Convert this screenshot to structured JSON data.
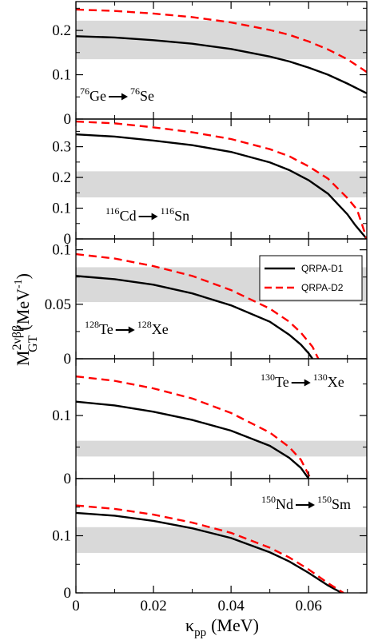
{
  "chart_data": {
    "type": "line",
    "xlabel": {
      "symbol": "κ",
      "sub": "pp",
      "unit": "(MeV)"
    },
    "ylabel": {
      "base": "M",
      "sup": "2νββ",
      "sub": "GT",
      "unit_open": "(MeV",
      "unit_exp": "-1",
      "unit_close": ")"
    },
    "xlim": [
      0,
      0.075
    ],
    "xticks": [
      {
        "value": 0,
        "label": "0"
      },
      {
        "value": 0.02,
        "label": "0.02"
      },
      {
        "value": 0.04,
        "label": "0.04"
      },
      {
        "value": 0.06,
        "label": "0.06"
      }
    ],
    "legend": {
      "placement": "right, third panel",
      "entries": [
        {
          "label": "QRPA-D1",
          "color": "#000000",
          "dash": "solid"
        },
        {
          "label": "QRPA-D2",
          "color": "#ff0000",
          "dash": "dashed"
        }
      ]
    },
    "panels": [
      {
        "reaction": {
          "parent_mass": "76",
          "parent": "Ge",
          "daughter_mass": "76",
          "daughter": "Se"
        },
        "ylim": [
          0,
          0.265
        ],
        "yticks": [
          {
            "value": 0,
            "label": "0"
          },
          {
            "value": 0.1,
            "label": "0.1"
          },
          {
            "value": 0.2,
            "label": "0.2"
          }
        ],
        "band": [
          0.135,
          0.222
        ],
        "series": [
          {
            "name": "QRPA-D1",
            "x": [
              0,
              0.01,
              0.02,
              0.03,
              0.04,
              0.05,
              0.055,
              0.06,
              0.065,
              0.07,
              0.075
            ],
            "y": [
              0.187,
              0.184,
              0.178,
              0.17,
              0.158,
              0.141,
              0.13,
              0.116,
              0.1,
              0.08,
              0.058
            ]
          },
          {
            "name": "QRPA-D2",
            "x": [
              0,
              0.01,
              0.02,
              0.03,
              0.04,
              0.05,
              0.055,
              0.06,
              0.065,
              0.07,
              0.075
            ],
            "y": [
              0.247,
              0.244,
              0.238,
              0.23,
              0.218,
              0.201,
              0.19,
              0.175,
              0.157,
              0.135,
              0.106
            ]
          }
        ]
      },
      {
        "reaction": {
          "parent_mass": "116",
          "parent": "Cd",
          "daughter_mass": "116",
          "daughter": "Sn"
        },
        "ylim": [
          0,
          0.39
        ],
        "yticks": [
          {
            "value": 0,
            "label": "0"
          },
          {
            "value": 0.1,
            "label": "0.1"
          },
          {
            "value": 0.2,
            "label": "0.2"
          },
          {
            "value": 0.3,
            "label": "0.3"
          }
        ],
        "band": [
          0.135,
          0.22
        ],
        "series": [
          {
            "name": "QRPA-D1",
            "x": [
              0,
              0.01,
              0.02,
              0.03,
              0.04,
              0.05,
              0.055,
              0.06,
              0.065,
              0.07,
              0.072,
              0.075
            ],
            "y": [
              0.34,
              0.333,
              0.32,
              0.305,
              0.283,
              0.249,
              0.224,
              0.191,
              0.147,
              0.08,
              0.045,
              0.0
            ]
          },
          {
            "name": "QRPA-D2",
            "x": [
              0,
              0.01,
              0.02,
              0.03,
              0.04,
              0.05,
              0.055,
              0.06,
              0.065,
              0.07,
              0.0725,
              0.075
            ],
            "y": [
              0.382,
              0.376,
              0.363,
              0.347,
              0.325,
              0.292,
              0.269,
              0.236,
              0.196,
              0.133,
              0.095,
              0.0
            ]
          }
        ]
      },
      {
        "reaction": {
          "parent_mass": "128",
          "parent": "Te",
          "daughter_mass": "128",
          "daughter": "Xe"
        },
        "ylim": [
          0,
          0.11
        ],
        "yticks": [
          {
            "value": 0,
            "label": "0"
          },
          {
            "value": 0.05,
            "label": "0.05"
          },
          {
            "value": 0.1,
            "label": "0.1"
          }
        ],
        "band": [
          0.052,
          0.084
        ],
        "series": [
          {
            "name": "QRPA-D1",
            "x": [
              0,
              0.01,
              0.02,
              0.03,
              0.04,
              0.05,
              0.055,
              0.058,
              0.06,
              0.061
            ],
            "y": [
              0.076,
              0.073,
              0.068,
              0.06,
              0.049,
              0.034,
              0.022,
              0.013,
              0.005,
              0.0
            ]
          },
          {
            "name": "QRPA-D2",
            "x": [
              0,
              0.01,
              0.02,
              0.03,
              0.04,
              0.05,
              0.055,
              0.058,
              0.061,
              0.0625
            ],
            "y": [
              0.096,
              0.092,
              0.085,
              0.076,
              0.063,
              0.046,
              0.034,
              0.024,
              0.011,
              0.0
            ]
          }
        ]
      },
      {
        "reaction": {
          "parent_mass": "130",
          "parent": "Te",
          "daughter_mass": "130",
          "daughter": "Xe"
        },
        "ylim": [
          0,
          0.19
        ],
        "yticks": [
          {
            "value": 0,
            "label": "0"
          },
          {
            "value": 0.1,
            "label": "0.1"
          }
        ],
        "band": [
          0.035,
          0.06
        ],
        "series": [
          {
            "name": "QRPA-D1",
            "x": [
              0,
              0.01,
              0.02,
              0.03,
              0.04,
              0.05,
              0.055,
              0.058,
              0.06
            ],
            "y": [
              0.122,
              0.116,
              0.106,
              0.093,
              0.076,
              0.052,
              0.033,
              0.017,
              0.0
            ]
          },
          {
            "name": "QRPA-D2",
            "x": [
              0,
              0.01,
              0.02,
              0.03,
              0.04,
              0.05,
              0.055,
              0.058,
              0.0605
            ],
            "y": [
              0.162,
              0.155,
              0.143,
              0.127,
              0.104,
              0.073,
              0.05,
              0.03,
              0.0
            ]
          }
        ]
      },
      {
        "reaction": {
          "parent_mass": "150",
          "parent": "Nd",
          "daughter_mass": "150",
          "daughter": "Sm"
        },
        "ylim": [
          0,
          0.2
        ],
        "yticks": [
          {
            "value": 0,
            "label": "0"
          },
          {
            "value": 0.1,
            "label": "0.1"
          }
        ],
        "band": [
          0.07,
          0.115
        ],
        "series": [
          {
            "name": "QRPA-D1",
            "x": [
              0,
              0.01,
              0.02,
              0.03,
              0.04,
              0.05,
              0.055,
              0.06,
              0.065,
              0.0685
            ],
            "y": [
              0.14,
              0.135,
              0.126,
              0.113,
              0.096,
              0.071,
              0.055,
              0.035,
              0.013,
              0.0
            ]
          },
          {
            "name": "QRPA-D2",
            "x": [
              0,
              0.01,
              0.02,
              0.03,
              0.04,
              0.05,
              0.055,
              0.06,
              0.065,
              0.069
            ],
            "y": [
              0.153,
              0.147,
              0.137,
              0.123,
              0.105,
              0.079,
              0.062,
              0.041,
              0.017,
              0.0
            ]
          }
        ]
      }
    ]
  }
}
